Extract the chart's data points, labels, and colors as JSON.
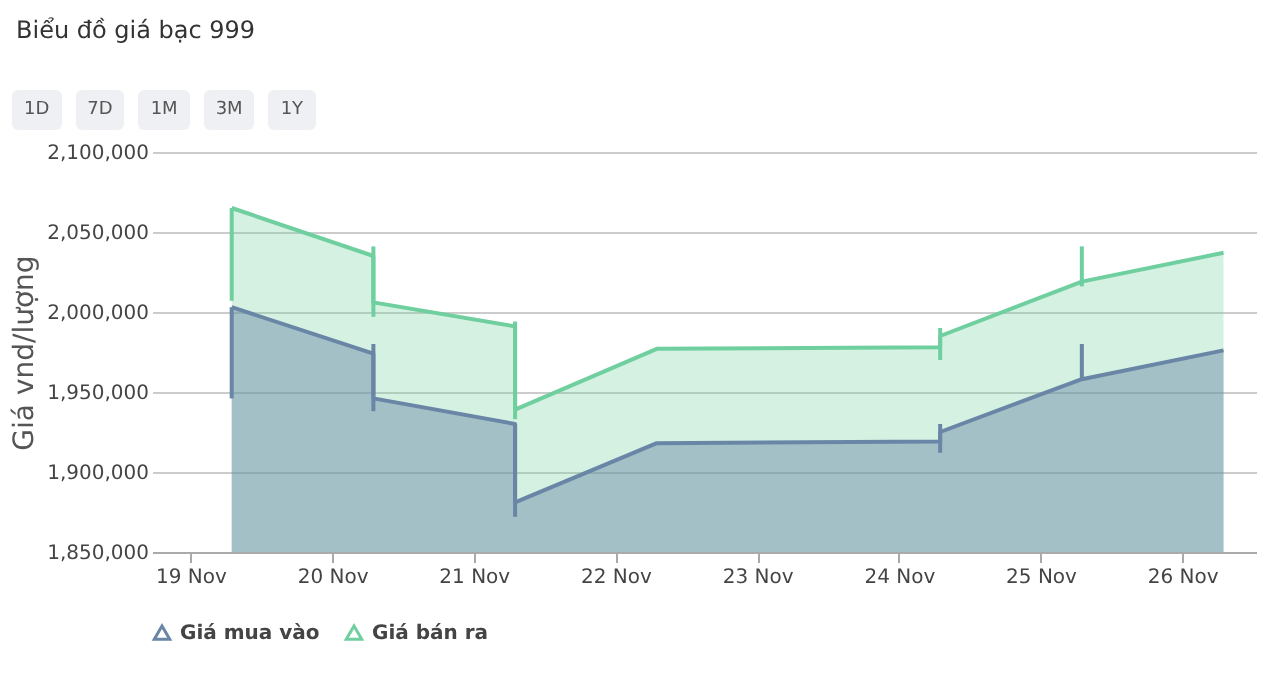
{
  "chart_data": {
    "type": "area",
    "title": "Biểu đồ giá bạc 999",
    "annotations": [
      "1D",
      "7D",
      "1M",
      "3M",
      "1Y"
    ],
    "ylabel": "Giá vnd/lượng",
    "x": [
      "--11-19T07:00",
      "--11-20T07:00",
      "--11-20T07:00",
      "--11-21T07:00",
      "--11-21T07:00",
      "--11-22T07:00",
      "--11-24T07:00",
      "--11-24T07:00",
      "--11-25T07:00",
      "--11-26T07:00"
    ],
    "series": [
      {
        "name": "Giá bán ra",
        "color": "#6fcf9f",
        "values": [
          2065000,
          2035000,
          2006000,
          1991000,
          1939000,
          1977000,
          1978000,
          1985000,
          2019000,
          2037000
        ],
        "errors": [
          [
            2007000,
            2065000
          ],
          [
            1997000,
            2041000
          ],
          null,
          [
            1933000,
            1994000
          ],
          null,
          null,
          [
            1970000,
            1990000
          ],
          null,
          [
            2016000,
            2041000
          ],
          null
        ]
      },
      {
        "name": "Giá mua vào",
        "color": "#6a86a6",
        "values": [
          2003000,
          1974000,
          1946000,
          1930000,
          1881000,
          1918000,
          1919000,
          1925000,
          1958000,
          1976000
        ],
        "errors": [
          [
            1946000,
            2003000
          ],
          [
            1938000,
            1980000
          ],
          null,
          [
            1872000,
            1930000
          ],
          null,
          null,
          [
            1912000,
            1930000
          ],
          null,
          [
            1958000,
            1980000
          ],
          null
        ]
      }
    ],
    "xlim": [
      "--11-18T17:30",
      "--11-26T12:30"
    ],
    "xticks": [
      {
        "value": "--11-19",
        "label": "19 Nov"
      },
      {
        "value": "--11-20",
        "label": "20 Nov"
      },
      {
        "value": "--11-21",
        "label": "21 Nov"
      },
      {
        "value": "--11-22",
        "label": "22 Nov"
      },
      {
        "value": "--11-23",
        "label": "23 Nov"
      },
      {
        "value": "--11-24",
        "label": "24 Nov"
      },
      {
        "value": "--11-25",
        "label": "25 Nov"
      },
      {
        "value": "--11-26",
        "label": "26 Nov"
      }
    ],
    "ylim": [
      1850000,
      2100000
    ],
    "yticks": [
      {
        "value": 1850000,
        "label": "1,850,000"
      },
      {
        "value": 1900000,
        "label": "1,900,000"
      },
      {
        "value": 1950000,
        "label": "1,950,000"
      },
      {
        "value": 2000000,
        "label": "2,000,000"
      },
      {
        "value": 2050000,
        "label": "2,050,000"
      },
      {
        "value": 2100000,
        "label": "2,100,000"
      }
    ],
    "grid": "y",
    "legend": "bottom",
    "marker": "none"
  }
}
